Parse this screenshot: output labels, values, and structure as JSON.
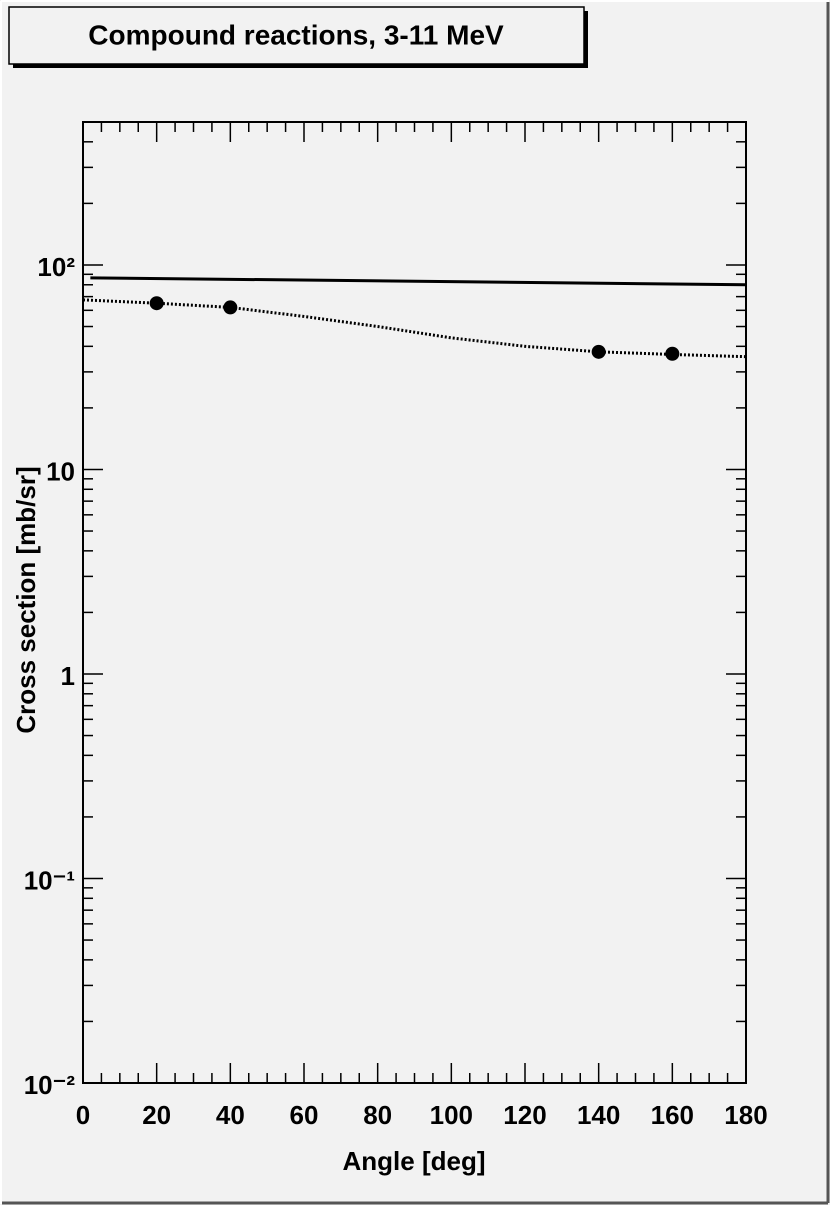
{
  "chart_data": {
    "type": "scatter",
    "title": "Compound reactions, 3-11 MeV",
    "x_label": "Angle [deg]",
    "y_label": "Cross section [mb/sr]",
    "xlim": [
      0,
      180
    ],
    "xticks": [
      0,
      20,
      40,
      60,
      80,
      100,
      120,
      140,
      160,
      180
    ],
    "x_minor_ticks": [
      5,
      10,
      15,
      25,
      30,
      35,
      45,
      50,
      55,
      65,
      70,
      75,
      85,
      90,
      95,
      105,
      110,
      115,
      125,
      130,
      135,
      145,
      150,
      155,
      165,
      170,
      175
    ],
    "ylim": [
      0.01,
      500
    ],
    "log_y": true,
    "yticks": [
      {
        "value": 0.01,
        "label": "10⁻²"
      },
      {
        "value": 0.1,
        "label": "10⁻¹"
      },
      1,
      10,
      {
        "value": 100,
        "label": "10²"
      }
    ],
    "y_minor_ticks": [
      0.02,
      0.03,
      0.04,
      0.05,
      0.06,
      0.07,
      0.08,
      0.09,
      0.2,
      0.3,
      0.4,
      0.5,
      0.6,
      0.7,
      0.8,
      0.9,
      2,
      3,
      4,
      5,
      6,
      7,
      8,
      9,
      20,
      30,
      40,
      50,
      60,
      70,
      80,
      90,
      200,
      300,
      400
    ],
    "series": [
      {
        "type": "line",
        "style": "solid",
        "color": "#000000",
        "x": [
          2,
          180
        ],
        "values": [
          86.5,
          80
        ]
      },
      {
        "type": "line",
        "style": "dotted",
        "color": "#000000",
        "x": [
          0,
          20,
          40,
          60,
          80,
          100,
          120,
          140,
          160,
          180
        ],
        "values": [
          67.5,
          65,
          62,
          56,
          50,
          44,
          40,
          37.6,
          36.5,
          35.6
        ]
      },
      {
        "type": "scatter",
        "color": "#000000",
        "x": [
          20,
          40,
          140,
          160
        ],
        "values": [
          65,
          62,
          37.6,
          36.8
        ]
      }
    ]
  }
}
